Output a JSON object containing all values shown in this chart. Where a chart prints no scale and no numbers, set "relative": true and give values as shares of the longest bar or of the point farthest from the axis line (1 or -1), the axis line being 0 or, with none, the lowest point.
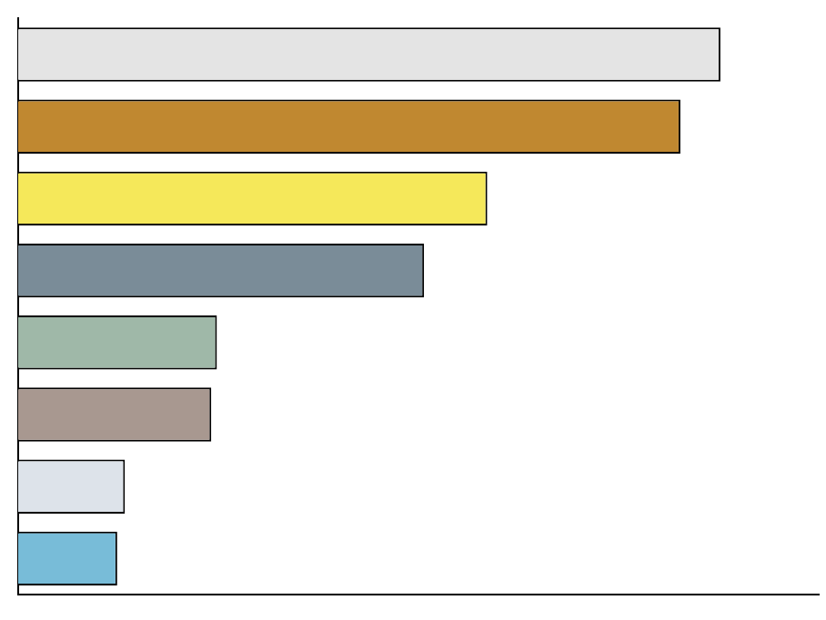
{
  "chart_data": {
    "type": "bar",
    "orientation": "horizontal",
    "relative": true,
    "categories": [
      null,
      null,
      null,
      null,
      null,
      null,
      null,
      null
    ],
    "values": [
      1,
      0.943,
      0.668,
      0.578,
      0.283,
      0.275,
      0.152,
      0.141
    ],
    "colors": [
      "#e4e4e4",
      "#c08830",
      "#f5e85a",
      "#7a8c98",
      "#9fb8a8",
      "#a89890",
      "#dde3ea",
      "#78bcd8"
    ],
    "grid": false,
    "legend": false
  }
}
